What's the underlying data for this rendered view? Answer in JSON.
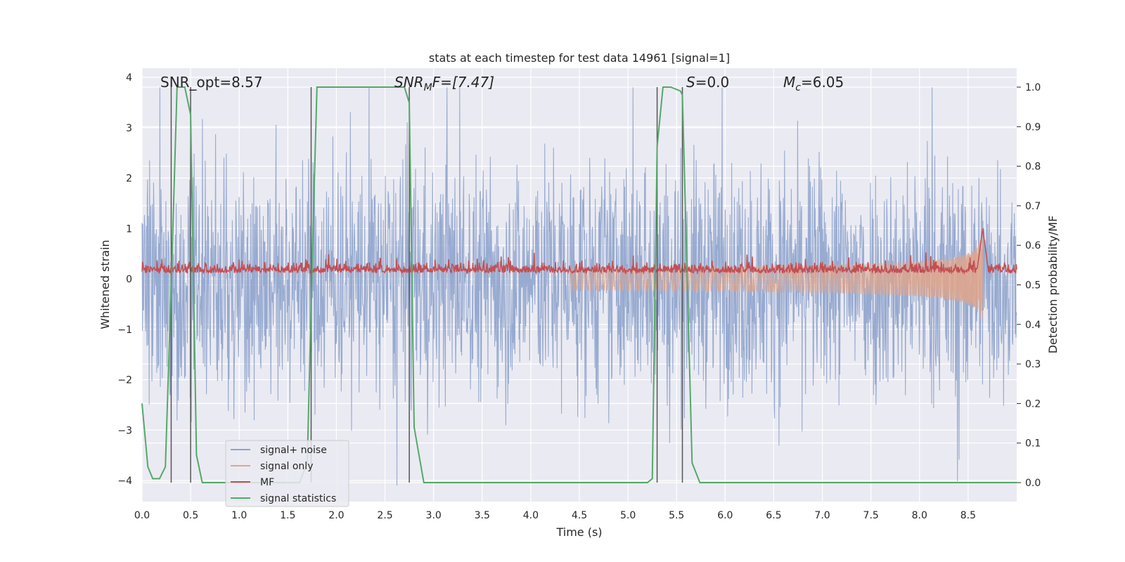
{
  "chart_data": {
    "type": "line",
    "title": "stats at each timestep for test data 14961 [signal=1]",
    "xlabel": "Time (s)",
    "ylabel": "Whitened strain",
    "y2label": "Detection probability/MF",
    "xlim": [
      0.0,
      9.0
    ],
    "ylim": [
      -4.2,
      4.2
    ],
    "y2lim": [
      -0.05,
      1.05
    ],
    "xticks": [
      "0.0",
      "0.5",
      "1.0",
      "1.5",
      "2.0",
      "2.5",
      "3.0",
      "3.5",
      "4.0",
      "4.5",
      "5.0",
      "5.5",
      "6.0",
      "6.5",
      "7.0",
      "7.5",
      "8.0",
      "8.5"
    ],
    "yticks": [
      "4",
      "3",
      "2",
      "1",
      "0",
      "−1",
      "−2",
      "−3",
      "−4"
    ],
    "y2ticks": [
      "1.0",
      "0.9",
      "0.8",
      "0.7",
      "0.6",
      "0.5",
      "0.4",
      "0.3",
      "0.2",
      "0.1",
      "0.0"
    ],
    "grid": true,
    "legend_position": "lower-left",
    "annotations": {
      "snr_opt": "SNR_opt=8.57",
      "snr_mf_main": "SNR",
      "snr_mf_sub": "M",
      "snr_mf_rest": "F=[7.47]",
      "s_var": "S",
      "s_rest": "=0.0",
      "mc_var": "M",
      "mc_sub": "c",
      "mc_rest": "=6.05"
    },
    "vlines": [
      0.3,
      0.5,
      1.74,
      2.75,
      5.3,
      5.56
    ],
    "series": [
      {
        "name": "signal+ noise",
        "color": "#8ea3cc",
        "style": "noise",
        "amplitude_range": [
          -4.1,
          3.8
        ]
      },
      {
        "name": "signal only",
        "color": "#e0a58a",
        "style": "chirp",
        "merger_time": 8.65,
        "peak_amplitude": 0.85
      },
      {
        "name": "MF",
        "color": "#c44e52",
        "style": "mf",
        "baseline": 0.15,
        "peak_time": 8.65,
        "peak_value": 1.0
      },
      {
        "name": "signal statistics",
        "color": "#55a868",
        "axis": "right",
        "x": [
          0.0,
          0.06,
          0.11,
          0.18,
          0.24,
          0.3,
          0.36,
          0.44,
          0.5,
          0.56,
          0.62,
          0.7,
          1.5,
          1.62,
          1.7,
          1.76,
          1.8,
          2.6,
          2.7,
          2.75,
          2.8,
          2.9,
          3.0,
          5.2,
          5.25,
          5.3,
          5.36,
          5.44,
          5.54,
          5.56,
          5.66,
          5.74,
          5.8,
          9.0
        ],
        "values": [
          0.2,
          0.04,
          0.01,
          0.01,
          0.04,
          0.5,
          1.0,
          1.0,
          0.93,
          0.07,
          0.0,
          0.0,
          0.0,
          0.0,
          0.05,
          0.65,
          1.0,
          1.0,
          1.0,
          0.96,
          0.14,
          0.0,
          0.0,
          0.0,
          0.01,
          0.85,
          1.0,
          1.0,
          0.99,
          0.98,
          0.05,
          0.0,
          0.0,
          0.0
        ]
      }
    ]
  }
}
